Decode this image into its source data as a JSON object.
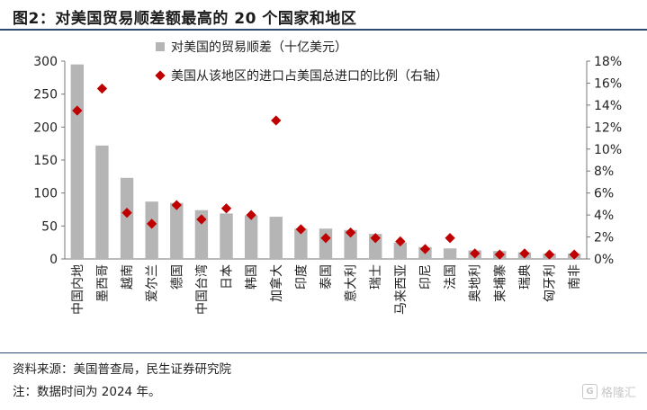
{
  "header": {
    "title": "图2：对美国贸易顺差额最高的 20 个国家和地区"
  },
  "footer": {
    "source": "资料来源：美国普查局，民生证券研究院",
    "note": "注：数据时间为 2024 年。",
    "watermark": "格隆汇",
    "watermark_logo": "G"
  },
  "chart_data": {
    "type": "bar",
    "title": "",
    "categories": [
      "中国内地",
      "墨西哥",
      "越南",
      "爱尔兰",
      "德国",
      "中国台湾",
      "日本",
      "韩国",
      "加拿大",
      "印度",
      "泰国",
      "意大利",
      "瑞士",
      "马来西亚",
      "印尼",
      "法国",
      "奥地利",
      "柬埔寨",
      "瑞典",
      "匈牙利",
      "南非"
    ],
    "series": [
      {
        "name": "对美国的贸易顺差（十亿美元）",
        "type": "bar",
        "axis": "left",
        "color": "#b5b5b5",
        "values": [
          295,
          172,
          123,
          87,
          85,
          74,
          69,
          66,
          64,
          46,
          46,
          44,
          38,
          25,
          18,
          16,
          13,
          12,
          10,
          8,
          8
        ]
      },
      {
        "name": "美国从该地区的进口占美国总进口的比例（右轴）",
        "type": "scatter",
        "axis": "right",
        "color": "#c00000",
        "values": [
          13.5,
          15.5,
          4.2,
          3.2,
          4.9,
          3.6,
          4.6,
          4.0,
          12.6,
          2.7,
          1.9,
          2.4,
          1.9,
          1.6,
          0.9,
          1.9,
          0.5,
          0.4,
          0.5,
          0.4,
          0.4
        ]
      }
    ],
    "y_left": {
      "min": 0,
      "max": 300,
      "ticks": [
        "0",
        "50",
        "100",
        "150",
        "200",
        "250",
        "300"
      ]
    },
    "y_right": {
      "min": 0,
      "max": 18,
      "ticks": [
        "0%",
        "2%",
        "4%",
        "6%",
        "8%",
        "10%",
        "12%",
        "14%",
        "16%",
        "18%"
      ]
    },
    "legend": "top-center",
    "grid": false
  }
}
